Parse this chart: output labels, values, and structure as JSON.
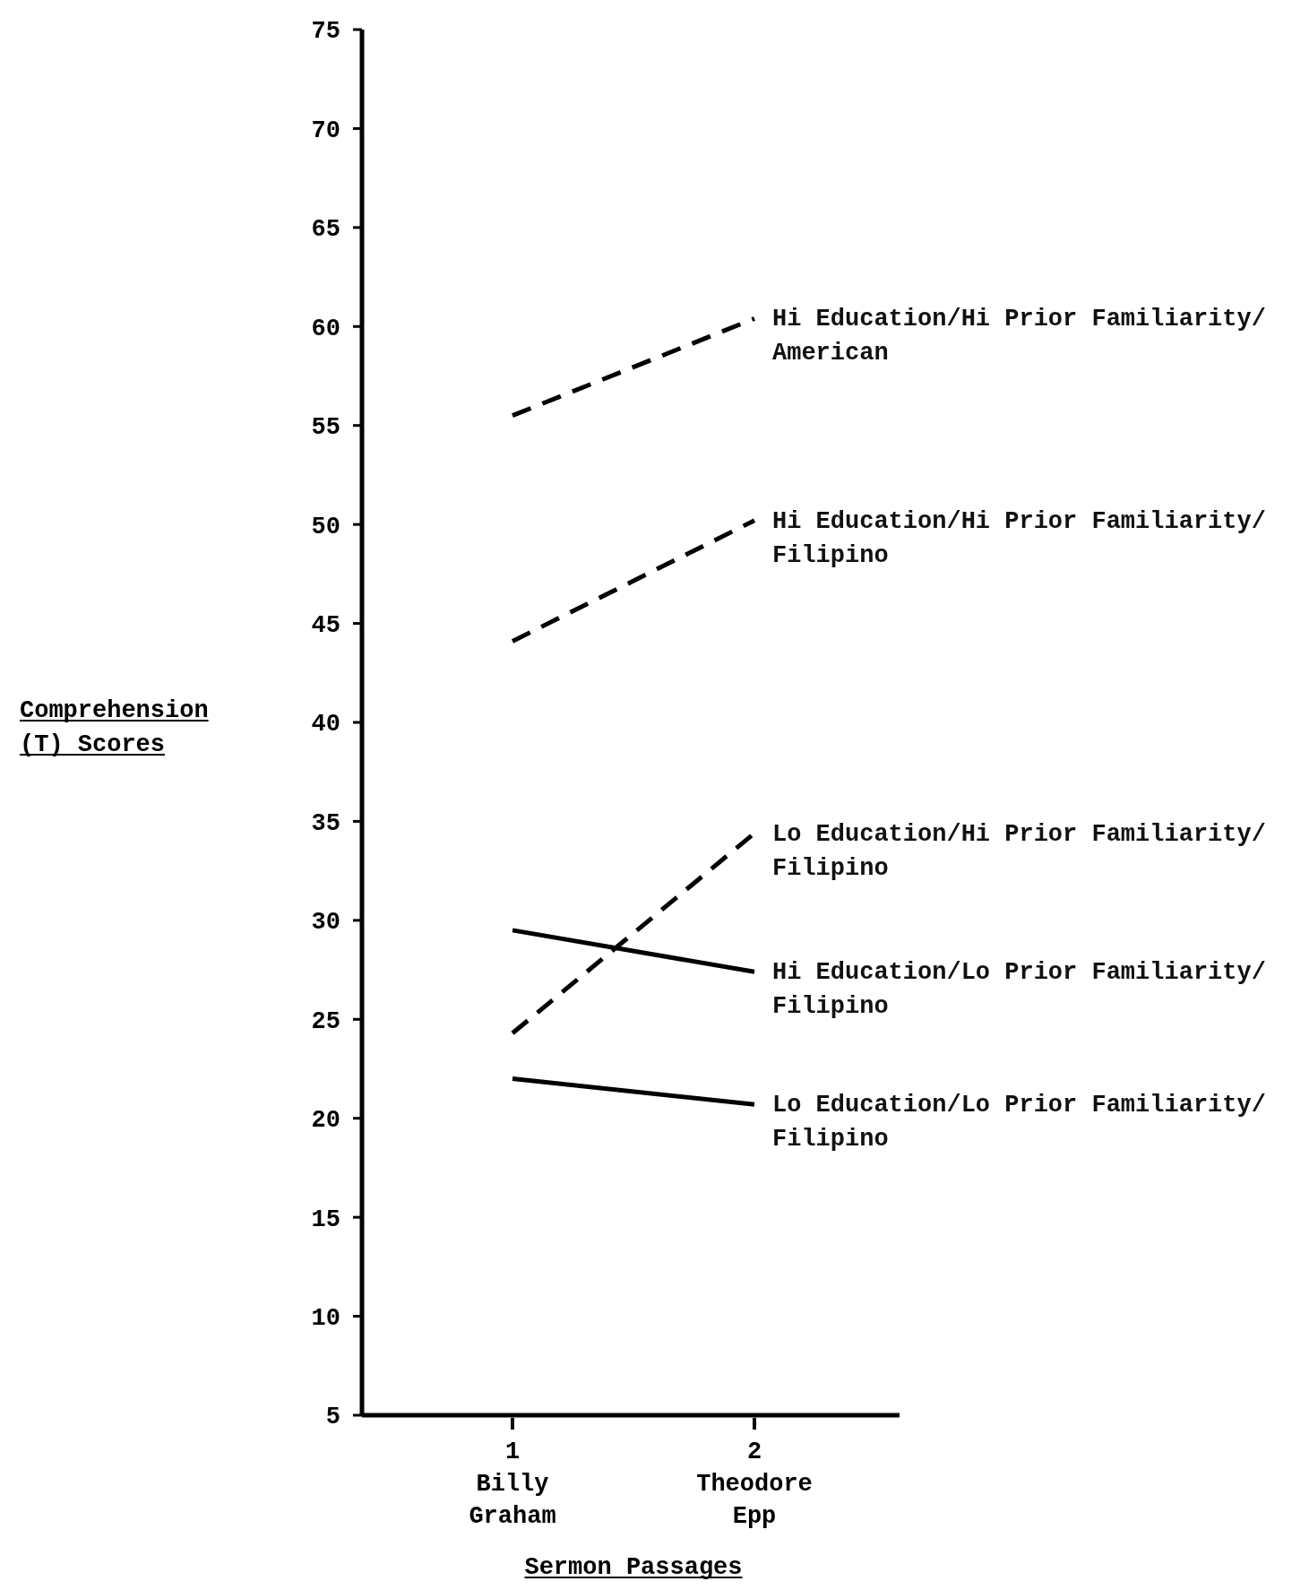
{
  "chart_data": {
    "type": "line",
    "xlabel": "Sermon Passages",
    "ylabel": "Comprehension\n(T) Scores",
    "categories": [
      "1\nBilly\nGraham",
      "2\nTheodore\nEpp"
    ],
    "ylim": [
      5,
      75
    ],
    "yticks": [
      5,
      10,
      15,
      20,
      25,
      30,
      35,
      40,
      45,
      50,
      55,
      60,
      65,
      70,
      75
    ],
    "grid": false,
    "marker": "none",
    "series": [
      {
        "name": "Hi Education/Hi Prior Familiarity/\nAmerican",
        "color": "#000000",
        "line_style": "dashed",
        "values": [
          55.5,
          60.4
        ]
      },
      {
        "name": "Hi Education/Hi Prior Familiarity/\nFilipino",
        "color": "#000000",
        "line_style": "dashed",
        "values": [
          44.1,
          50.2
        ]
      },
      {
        "name": "Lo Education/Hi Prior Familiarity/\nFilipino",
        "color": "#000000",
        "line_style": "dashed",
        "values": [
          24.3,
          34.4
        ]
      },
      {
        "name": "Hi Education/Lo Prior Familiarity/\nFilipino",
        "color": "#000000",
        "line_style": "solid",
        "values": [
          29.5,
          27.4
        ]
      },
      {
        "name": "Lo Education/Lo Prior Familiarity/\nFilipino",
        "color": "#000000",
        "line_style": "solid",
        "values": [
          22.0,
          20.7
        ]
      }
    ]
  }
}
